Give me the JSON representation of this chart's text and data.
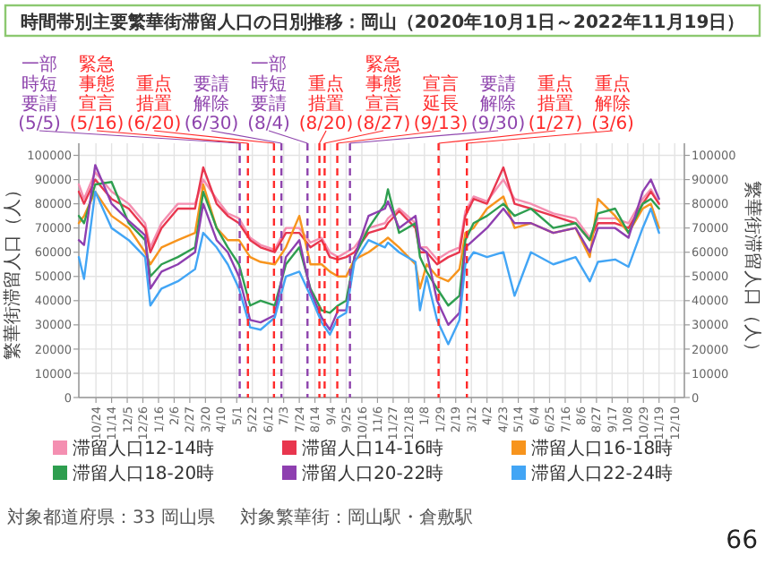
{
  "chart_data": {
    "type": "line",
    "title": "時間帯別主要繁華街滞留人口の日別推移：岡山（2020年10月1日～2022年11月19日）",
    "ylabel": "繁華街滞留人口（人）",
    "y2label": "繁華街滞留人口（人）",
    "x": [
      "2020-10-01",
      "2020-10-08",
      "2020-10-23",
      "2020-11-14",
      "2020-12-07",
      "2020-12-29",
      "2021-01-05",
      "2021-01-20",
      "2021-02-11",
      "2021-03-06",
      "2021-03-17",
      "2021-04-04",
      "2021-04-19",
      "2021-05-04",
      "2021-05-19",
      "2021-06-02",
      "2021-06-21",
      "2021-07-06",
      "2021-07-24",
      "2021-08-08",
      "2021-08-23",
      "2021-09-03",
      "2021-09-14",
      "2021-09-25",
      "2021-10-06",
      "2021-10-25",
      "2021-11-16",
      "2021-11-20",
      "2021-12-05",
      "2021-12-27",
      "2022-01-02",
      "2022-01-11",
      "2022-01-25",
      "2022-02-09",
      "2022-02-24",
      "2022-03-04",
      "2022-03-15",
      "2022-04-02",
      "2022-04-24",
      "2022-05-09",
      "2022-05-31",
      "2022-06-30",
      "2022-07-30",
      "2022-08-18",
      "2022-08-29",
      "2022-09-21",
      "2022-10-09",
      "2022-10-28",
      "2022-11-08",
      "2022-11-19"
    ],
    "series": [
      {
        "name": "滞留人口12-14時",
        "color": "#f48fb1",
        "values": [
          88000,
          82000,
          93000,
          85000,
          80000,
          72000,
          62000,
          72000,
          80000,
          80000,
          90000,
          82000,
          76000,
          74000,
          66000,
          63000,
          61000,
          70000,
          70000,
          64000,
          66000,
          60000,
          58000,
          60000,
          62000,
          70000,
          72000,
          74000,
          78000,
          72000,
          62000,
          62000,
          57000,
          60000,
          62000,
          77000,
          83000,
          81000,
          90000,
          82000,
          80000,
          76000,
          74000,
          66000,
          74000,
          74000,
          72000,
          82000,
          86000,
          80000
        ]
      },
      {
        "name": "滞留人口14-16時",
        "color": "#e8364e",
        "values": [
          85000,
          80000,
          90000,
          82000,
          78000,
          70000,
          60000,
          70000,
          78000,
          78000,
          95000,
          80000,
          75000,
          72000,
          65000,
          62000,
          60000,
          68000,
          68000,
          62000,
          65000,
          58000,
          57000,
          58000,
          60000,
          68000,
          70000,
          72000,
          77000,
          70000,
          60000,
          60000,
          55000,
          58000,
          60000,
          75000,
          82000,
          80000,
          95000,
          80000,
          78000,
          75000,
          72000,
          65000,
          72000,
          72000,
          70000,
          80000,
          85000,
          80000
        ]
      },
      {
        "name": "滞留人口16-18時",
        "color": "#f7941d",
        "values": [
          72000,
          75000,
          85000,
          75000,
          70000,
          60000,
          55000,
          62000,
          65000,
          68000,
          88000,
          70000,
          65000,
          65000,
          58000,
          56000,
          55000,
          62000,
          75000,
          55000,
          55000,
          52000,
          50000,
          50000,
          57000,
          60000,
          65000,
          66000,
          62000,
          55000,
          45000,
          55000,
          50000,
          48000,
          53000,
          68000,
          70000,
          78000,
          83000,
          70000,
          72000,
          68000,
          70000,
          58000,
          82000,
          75000,
          68000,
          78000,
          80000,
          70000
        ]
      },
      {
        "name": "滞留人口18-20時",
        "color": "#2e9e4f",
        "values": [
          75000,
          72000,
          88000,
          89000,
          72000,
          65000,
          50000,
          55000,
          58000,
          62000,
          85000,
          70000,
          62000,
          55000,
          38000,
          40000,
          38000,
          55000,
          62000,
          45000,
          36000,
          35000,
          38000,
          40000,
          58000,
          70000,
          80000,
          86000,
          68000,
          72000,
          58000,
          52000,
          45000,
          38000,
          42000,
          65000,
          72000,
          75000,
          80000,
          75000,
          78000,
          70000,
          72000,
          65000,
          76000,
          78000,
          68000,
          80000,
          82000,
          78000
        ]
      },
      {
        "name": "滞留人口20-22時",
        "color": "#8e3fb0",
        "values": [
          65000,
          63000,
          96000,
          80000,
          73000,
          67000,
          45000,
          52000,
          55000,
          60000,
          80000,
          65000,
          60000,
          50000,
          32000,
          31000,
          34000,
          58000,
          65000,
          44000,
          33000,
          28000,
          36000,
          36000,
          58000,
          75000,
          78000,
          81000,
          70000,
          75000,
          62000,
          60000,
          40000,
          30000,
          35000,
          62000,
          65000,
          70000,
          78000,
          72000,
          72000,
          68000,
          70000,
          60000,
          70000,
          70000,
          66000,
          85000,
          90000,
          82000
        ]
      },
      {
        "name": "滞留人口22-24時",
        "color": "#42a5f5",
        "values": [
          58000,
          49000,
          85000,
          70000,
          65000,
          58000,
          38000,
          45000,
          48000,
          53000,
          68000,
          62000,
          55000,
          45000,
          29000,
          28000,
          33000,
          50000,
          52000,
          42000,
          31000,
          26000,
          33000,
          35000,
          56000,
          65000,
          62000,
          64000,
          60000,
          56000,
          36000,
          50000,
          32000,
          22000,
          32000,
          55000,
          60000,
          58000,
          60000,
          42000,
          60000,
          55000,
          58000,
          48000,
          56000,
          57000,
          54000,
          70000,
          78000,
          68000
        ]
      }
    ],
    "xlim": [
      "2020-10-01",
      "2022-12-23"
    ],
    "xticks": [
      {
        "value": "2020-10-24",
        "label": "10/24"
      },
      {
        "value": "2020-11-14",
        "label": "11/14"
      },
      {
        "value": "2020-12-05",
        "label": "12/5"
      },
      {
        "value": "2020-12-26",
        "label": "12/26"
      },
      {
        "value": "2021-01-16",
        "label": "1/16"
      },
      {
        "value": "2021-02-06",
        "label": "2/6"
      },
      {
        "value": "2021-02-27",
        "label": "2/27"
      },
      {
        "value": "2021-03-20",
        "label": "3/20"
      },
      {
        "value": "2021-04-10",
        "label": "4/10"
      },
      {
        "value": "2021-05-01",
        "label": "5/1"
      },
      {
        "value": "2021-05-22",
        "label": "5/22"
      },
      {
        "value": "2021-06-12",
        "label": "6/12"
      },
      {
        "value": "2021-07-03",
        "label": "7/3"
      },
      {
        "value": "2021-07-24",
        "label": "7/24"
      },
      {
        "value": "2021-08-14",
        "label": "8/14"
      },
      {
        "value": "2021-09-04",
        "label": "9/4"
      },
      {
        "value": "2021-09-25",
        "label": "9/25"
      },
      {
        "value": "2021-10-16",
        "label": "10/16"
      },
      {
        "value": "2021-11-06",
        "label": "11/6"
      },
      {
        "value": "2021-11-27",
        "label": "11/27"
      },
      {
        "value": "2021-12-18",
        "label": "12/18"
      },
      {
        "value": "2022-01-08",
        "label": "1/8"
      },
      {
        "value": "2022-01-29",
        "label": "1/29"
      },
      {
        "value": "2022-02-19",
        "label": "2/19"
      },
      {
        "value": "2022-03-12",
        "label": "3/12"
      },
      {
        "value": "2022-04-02",
        "label": "4/2"
      },
      {
        "value": "2022-04-23",
        "label": "4/23"
      },
      {
        "value": "2022-05-14",
        "label": "5/14"
      },
      {
        "value": "2022-06-04",
        "label": "6/4"
      },
      {
        "value": "2022-06-25",
        "label": "6/25"
      },
      {
        "value": "2022-07-16",
        "label": "7/16"
      },
      {
        "value": "2022-08-06",
        "label": "8/6"
      },
      {
        "value": "2022-08-27",
        "label": "8/27"
      },
      {
        "value": "2022-09-17",
        "label": "9/17"
      },
      {
        "value": "2022-10-08",
        "label": "10/8"
      },
      {
        "value": "2022-10-29",
        "label": "10/29"
      },
      {
        "value": "2022-11-19",
        "label": "11/19"
      },
      {
        "value": "2022-12-10",
        "label": "12/10"
      }
    ],
    "ylim": [
      0,
      105000
    ],
    "yticks": [
      0,
      10000,
      20000,
      30000,
      40000,
      50000,
      60000,
      70000,
      80000,
      90000,
      100000
    ],
    "y2lim": [
      0,
      105000
    ],
    "y2ticks": [
      0,
      10000,
      20000,
      30000,
      40000,
      50000,
      60000,
      70000,
      80000,
      90000,
      100000
    ],
    "ref_lines": [
      {
        "axis": "x",
        "value": "2021-05-05",
        "label": "一部時短要請(5/5)",
        "color": "#8e44ad",
        "line_style": "dashed"
      },
      {
        "axis": "x",
        "value": "2021-05-16",
        "label": "緊急事態宣言(5/16)",
        "color": "#ff2a2a",
        "line_style": "dashed"
      },
      {
        "axis": "x",
        "value": "2021-06-20",
        "label": "重点措置(6/20)",
        "color": "#ff2a2a",
        "line_style": "dashed"
      },
      {
        "axis": "x",
        "value": "2021-06-30",
        "label": "要請解除(6/30)",
        "color": "#8e44ad",
        "line_style": "dashed"
      },
      {
        "axis": "x",
        "value": "2021-08-04",
        "label": "一部時短要請(8/4)",
        "color": "#8e44ad",
        "line_style": "dashed"
      },
      {
        "axis": "x",
        "value": "2021-08-20",
        "label": "重点措置(8/20)",
        "color": "#ff2a2a",
        "line_style": "dashed"
      },
      {
        "axis": "x",
        "value": "2021-08-27",
        "label": "緊急事態宣言(8/27)",
        "color": "#ff2a2a",
        "line_style": "dashed"
      },
      {
        "axis": "x",
        "value": "2021-09-13",
        "label": "宣言延長(9/13)",
        "color": "#ff2a2a",
        "line_style": "dashed"
      },
      {
        "axis": "x",
        "value": "2021-09-30",
        "label": "要請解除(9/30)",
        "color": "#8e44ad",
        "line_style": "dashed"
      },
      {
        "axis": "x",
        "value": "2022-01-27",
        "label": "重点措置(1/27)",
        "color": "#ff2a2a",
        "line_style": "dashed"
      },
      {
        "axis": "x",
        "value": "2022-03-06",
        "label": "重点解除(3/6)",
        "color": "#ff2a2a",
        "line_style": "dashed"
      }
    ],
    "grid": true,
    "legend": "bottom",
    "annotations": [
      "対象都道府県：33 岡山県",
      "対象繁華街：岡山駅・倉敷駅",
      "66"
    ]
  }
}
